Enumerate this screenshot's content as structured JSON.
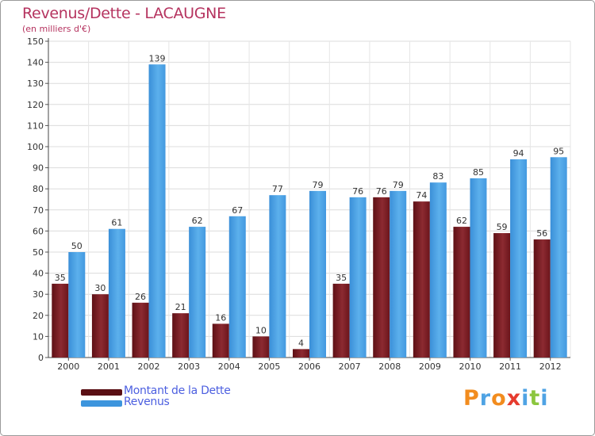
{
  "title": "Revenus/Dette - LACAUGNE",
  "subtitle": "(en milliers d'€)",
  "colors": {
    "title": "#b5335f",
    "legend_text": "#4c5fe0",
    "dette": "#7a1c24",
    "revenus": "#4fa3e4"
  },
  "legend": [
    {
      "label": "Montant de la Dette",
      "color": "#5a0f14"
    },
    {
      "label": "Revenus",
      "color": "#3d95dd"
    }
  ],
  "logo": {
    "letters": [
      "P",
      "r",
      "o",
      "x",
      "i",
      "t",
      "i"
    ],
    "colors": [
      "#f28c1e",
      "#4fa3e4",
      "#f28c1e",
      "#e63b2e",
      "#4fa3e4",
      "#8cc63f",
      "#4fa3e4"
    ]
  },
  "chart_data": {
    "type": "bar",
    "title": "Revenus/Dette - LACAUGNE",
    "ylabel": "(en milliers d'€)",
    "xlabel": "",
    "categories": [
      "2000",
      "2001",
      "2002",
      "2003",
      "2004",
      "2005",
      "2006",
      "2007",
      "2008",
      "2009",
      "2010",
      "2011",
      "2012"
    ],
    "series": [
      {
        "name": "Montant de la Dette",
        "values": [
          35,
          30,
          26,
          21,
          16,
          10,
          4,
          35,
          76,
          74,
          62,
          59,
          56
        ]
      },
      {
        "name": "Revenus",
        "values": [
          50,
          61,
          139,
          62,
          67,
          77,
          79,
          76,
          79,
          83,
          85,
          94,
          95
        ]
      }
    ],
    "ylim": [
      0,
      150
    ],
    "yticks": [
      0,
      10,
      20,
      30,
      40,
      50,
      60,
      70,
      80,
      90,
      100,
      110,
      120,
      130,
      140,
      150
    ],
    "grid": true,
    "legend_position": "bottom-left"
  }
}
